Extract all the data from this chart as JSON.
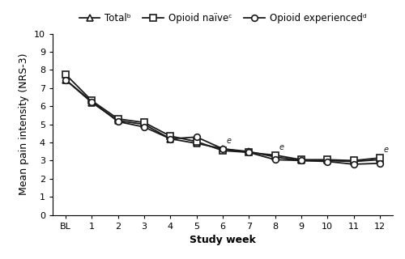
{
  "x_labels": [
    "BL",
    "1",
    "2",
    "3",
    "4",
    "5",
    "6",
    "7",
    "8",
    "9",
    "10",
    "11",
    "12"
  ],
  "x_positions": [
    0,
    1,
    2,
    3,
    4,
    5,
    6,
    7,
    8,
    9,
    10,
    11,
    12
  ],
  "total": [
    7.45,
    6.2,
    5.2,
    5.0,
    4.2,
    3.95,
    3.65,
    3.5,
    3.2,
    3.0,
    3.0,
    2.95,
    3.05
  ],
  "opioid_naive": [
    7.75,
    6.3,
    5.3,
    5.1,
    4.35,
    4.05,
    3.55,
    3.45,
    3.3,
    3.05,
    3.05,
    3.0,
    3.15
  ],
  "opioid_experienced": [
    7.45,
    6.25,
    5.15,
    4.85,
    4.2,
    4.3,
    3.65,
    3.45,
    3.05,
    3.0,
    2.95,
    2.8,
    2.85
  ],
  "e_annotations": [
    6,
    8,
    12
  ],
  "ylim": [
    0,
    10
  ],
  "yticks": [
    0,
    1,
    2,
    3,
    4,
    5,
    6,
    7,
    8,
    9,
    10
  ],
  "ylabel": "Mean pain intensity (NRS-3)",
  "xlabel": "Study week",
  "legend_labels": [
    "Totalᵇ",
    "Opioid naïveᶜ",
    "Opioid experiencedᵈ"
  ],
  "line_color": "#1a1a1a",
  "bg_color": "#ffffff",
  "axis_fontsize": 9,
  "tick_fontsize": 8,
  "legend_fontsize": 8.5
}
